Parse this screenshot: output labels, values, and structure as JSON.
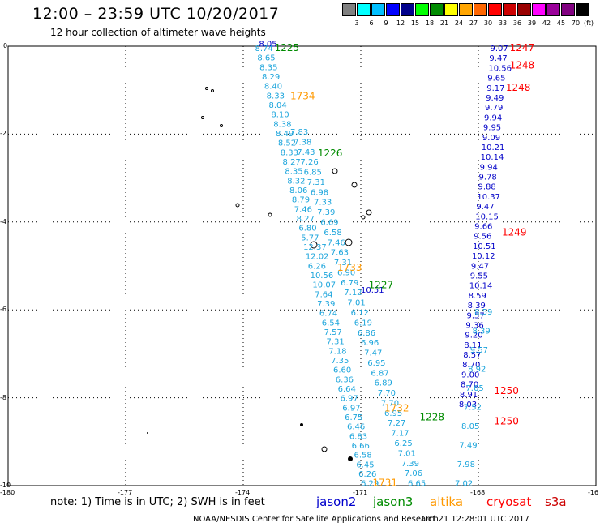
{
  "title": "12:00 – 23:59 UTC 10/20/2017",
  "subtitle": "12 hour collection of altimeter wave heights",
  "legend": {
    "unit": "(ft)",
    "colors": [
      "#808080",
      "#00ffff",
      "#00bfff",
      "#0000ff",
      "#00008b",
      "#00ff00",
      "#008b00",
      "#ffff00",
      "#ffa500",
      "#ff6600",
      "#ff0000",
      "#cc0000",
      "#990000",
      "#ff00ff",
      "#990099",
      "#800080",
      "#000000"
    ],
    "labels": [
      "3",
      "6",
      "9",
      "12",
      "15",
      "18",
      "21",
      "24",
      "27",
      "30",
      "33",
      "36",
      "39",
      "42",
      "45",
      "70"
    ]
  },
  "axes": {
    "x_ticks": [
      "-180",
      "-177",
      "-174",
      "-171",
      "-168",
      "-16"
    ],
    "y_ticks": [
      "0",
      "-2",
      "-4",
      "-6",
      "-8",
      "-10"
    ],
    "x_range": [
      -180,
      -165
    ],
    "y_range": [
      0,
      -10
    ]
  },
  "footnote": "note: 1) Time is in UTC; 2) SWH is in feet",
  "satellites": [
    {
      "name": "jason2",
      "color": "#0000cc"
    },
    {
      "name": "jason3",
      "color": "#008b00"
    },
    {
      "name": "altika",
      "color": "#ff9900"
    },
    {
      "name": "cryosat",
      "color": "#ff0000"
    },
    {
      "name": "s3a",
      "color": "#cc0000"
    }
  ],
  "credit": "NOAA/NESDIS Center for Satellite Applications and Research",
  "timestamp": "Oct 21 12:28:01 UTC 2017",
  "colors": {
    "cyan": "#1ca5dc",
    "navy": "#0000c8",
    "green": "#008b00",
    "orange": "#ff9900",
    "red": "#ff0000",
    "lightgreen": "#7ee07e"
  },
  "track_labels": [
    {
      "text": "1225",
      "color": "green",
      "lon": -173.2,
      "lat": 0.0
    },
    {
      "text": "1734",
      "color": "orange",
      "lon": -172.8,
      "lat": -1.1
    },
    {
      "text": "1226",
      "color": "green",
      "lon": -172.1,
      "lat": -2.4
    },
    {
      "text": "1733",
      "color": "orange",
      "lon": -171.6,
      "lat": -5.0
    },
    {
      "text": "1227",
      "color": "green",
      "lon": -170.8,
      "lat": -5.4
    },
    {
      "text": "1732",
      "color": "orange",
      "lon": -170.4,
      "lat": -8.2
    },
    {
      "text": "1228",
      "color": "green",
      "lon": -169.5,
      "lat": -8.4
    },
    {
      "text": "1731",
      "color": "orange",
      "lon": -170.7,
      "lat": -9.9
    },
    {
      "text": "1247",
      "color": "red",
      "lon": -167.2,
      "lat": 0.0
    },
    {
      "text": "1248",
      "color": "red",
      "lon": -167.2,
      "lat": -0.4
    },
    {
      "text": "1248",
      "color": "red",
      "lon": -167.3,
      "lat": -0.9
    },
    {
      "text": "1249",
      "color": "red",
      "lon": -167.4,
      "lat": -4.2
    },
    {
      "text": "1250",
      "color": "red",
      "lon": -167.6,
      "lat": -7.8
    },
    {
      "text": "1250",
      "color": "red",
      "lon": -167.6,
      "lat": -8.5
    }
  ],
  "track_cyan1": {
    "color": "cyan",
    "lon_start": -173.7,
    "lat_start": 0.0,
    "lon_end": -171.0,
    "lat_end": -9.9,
    "values": [
      "8.74",
      "8.65",
      "8.35",
      "8.29",
      "8.40",
      "8.33",
      "8.04",
      "8.10",
      "8.38",
      "8.49",
      "8.52",
      "8.33",
      "8.27",
      "8.35",
      "8.32",
      "8.06",
      "8.79",
      "7.46",
      "8.27",
      "6.80",
      "5.77",
      "12.37",
      "12.02",
      "6.26",
      "10.56",
      "10.07",
      "7.64",
      "7.39",
      "6.74",
      "6.54",
      "7.57",
      "7.31",
      "7.18",
      "7.35",
      "6.60",
      "6.36",
      "6.64",
      "6.97",
      "6.97",
      "6.75",
      "6.46",
      "6.83",
      "6.66",
      "6.58",
      "6.45",
      "6.26",
      "6.29"
    ]
  },
  "track_cyan2": {
    "color": "cyan",
    "lon_start": -172.8,
    "lat_start": -1.9,
    "lon_end": -169.8,
    "lat_end": -9.9,
    "values": [
      "7.83",
      "7.38",
      "7.43",
      "7.26",
      "6.85",
      "7.31",
      "6.98",
      "7.33",
      "7.39",
      "6.69",
      "6.58",
      "7.46",
      "7.63",
      "7.31",
      "6.90",
      "6.79",
      "7.12",
      "7.01",
      "6.12",
      "6.19",
      "6.86",
      "6.96",
      "7.47",
      "6.95",
      "6.87",
      "6.89",
      "7.70",
      "7.70",
      "6.95",
      "7.27",
      "7.17",
      "6.25",
      "7.01",
      "7.39",
      "7.06",
      "6.65"
    ]
  },
  "track_navy1": {
    "color": "navy",
    "lon_start": -173.6,
    "lat_start": 0.1,
    "lon_end": -171.0,
    "lat_end": -5.5,
    "values": [
      "8.05",
      "10.51"
    ]
  },
  "track_navy2": {
    "color": "navy",
    "lon_start": -167.7,
    "lat_start": 0.0,
    "lon_end": -168.5,
    "lat_end": -8.1,
    "values": [
      "9.07",
      "9.47",
      "10.56",
      "9.65",
      "9.17",
      "9.49",
      "9.79",
      "9.94",
      "9.95",
      "9.09",
      "10.21",
      "10.14",
      "9.94",
      "9.78",
      "9.88",
      "10.37",
      "9.47",
      "10.15",
      "9.66",
      "9.56",
      "10.51",
      "10.12",
      "9.47",
      "9.55",
      "10.14",
      "8.59",
      "8.39",
      "9.57",
      "9.36",
      "9.20",
      "8.11",
      "8.57",
      "8.70",
      "9.00",
      "8.70",
      "8.91",
      "8.03"
    ]
  },
  "track_cyan3": {
    "color": "cyan",
    "lon_start": -168.1,
    "lat_start": -6.0,
    "lon_end": -168.6,
    "lat_end": -9.9,
    "values": [
      "8.59",
      "8.39",
      "9.57",
      "8.92",
      "7.65",
      "7.52",
      "8.05",
      "7.49",
      "7.98",
      "7.02"
    ]
  }
}
